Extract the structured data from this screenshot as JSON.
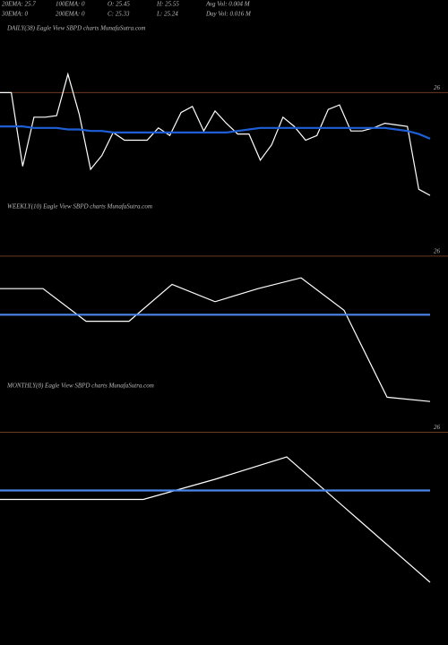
{
  "header": {
    "row1": [
      "20EMA: 25.7",
      "100EMA: 0",
      "O: 25.45",
      "H: 25.55",
      "Avg Vol: 0.004 M"
    ],
    "row2": [
      "30EMA: 0",
      "200EMA: 0",
      "C: 25.33",
      "L: 25.24",
      "Day Vol: 0.016 M"
    ]
  },
  "chart_data": [
    {
      "type": "line",
      "title": "DAILY(38) Eagle  View  SBPD charts MunafaSutra.com",
      "ylim": [
        25.29,
        26.37
      ],
      "yticks": [
        26
      ],
      "grid": true,
      "series": [
        {
          "color": "#ffffff",
          "values": [
            26.0,
            26.0,
            25.52,
            25.84,
            25.84,
            25.85,
            26.12,
            25.86,
            25.5,
            25.59,
            25.74,
            25.69,
            25.69,
            25.69,
            25.77,
            25.72,
            25.87,
            25.91,
            25.75,
            25.88,
            25.8,
            25.73,
            25.73,
            25.56,
            25.66,
            25.84,
            25.78,
            25.69,
            25.72,
            25.89,
            25.92,
            25.75,
            25.75,
            25.77,
            25.8,
            25.79,
            25.78,
            25.37,
            25.33
          ]
        },
        {
          "color": "#1e5fd6",
          "values": [
            25.78,
            25.78,
            25.78,
            25.77,
            25.77,
            25.77,
            25.76,
            25.76,
            25.75,
            25.75,
            25.74,
            25.74,
            25.74,
            25.74,
            25.74,
            25.74,
            25.74,
            25.74,
            25.74,
            25.74,
            25.74,
            25.75,
            25.76,
            25.77,
            25.77,
            25.77,
            25.77,
            25.77,
            25.77,
            25.77,
            25.77,
            25.77,
            25.77,
            25.77,
            25.77,
            25.76,
            25.75,
            25.73,
            25.7
          ]
        }
      ]
    },
    {
      "type": "line",
      "title": "WEEKLY(10) Eagle  View  SBPD charts MunafaSutra.com",
      "ylim": [
        25.24,
        26.21
      ],
      "yticks": [
        26
      ],
      "grid": true,
      "series": [
        {
          "color": "#ffffff",
          "values": [
            25.85,
            25.85,
            25.7,
            25.7,
            25.87,
            25.79,
            25.85,
            25.9,
            25.75,
            25.35,
            25.33
          ]
        },
        {
          "color": "#4a86e8",
          "values": [
            25.73,
            25.73,
            25.73,
            25.73,
            25.73,
            25.73,
            25.73,
            25.73,
            25.73,
            25.73,
            25.73
          ]
        }
      ]
    },
    {
      "type": "line",
      "title": "MONTHLY(8) Eagle  View  SBPD charts MunafaSutra.com",
      "ylim": [
        25.05,
        26.21
      ],
      "yticks": [
        26
      ],
      "grid": true,
      "series": [
        {
          "color": "#ffffff",
          "values": [
            25.7,
            25.7,
            25.7,
            25.79,
            25.89,
            25.61,
            25.33
          ]
        },
        {
          "color": "#4a86e8",
          "values": [
            25.74,
            25.74,
            25.74,
            25.74,
            25.74,
            25.74,
            25.74
          ]
        }
      ]
    }
  ]
}
